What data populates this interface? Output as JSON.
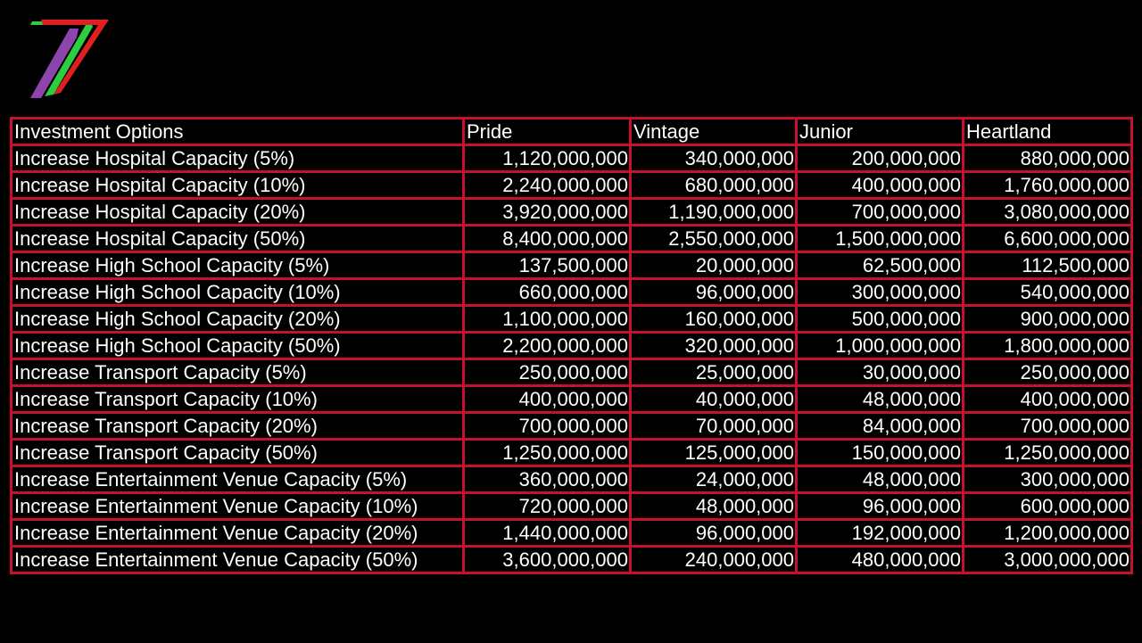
{
  "logo": {
    "icon": "channel-7-logo",
    "colors": [
      "#8e44ad",
      "#2ecc40",
      "#e02020"
    ]
  },
  "accent_color": "#c8102e",
  "table": {
    "headers": [
      "Investment Options",
      "Pride",
      "Vintage",
      "Junior",
      "Heartland"
    ],
    "rows": [
      [
        "Increase Hospital Capacity (5%)",
        "1,120,000,000",
        "340,000,000",
        "200,000,000",
        "880,000,000"
      ],
      [
        "Increase Hospital Capacity (10%)",
        "2,240,000,000",
        "680,000,000",
        "400,000,000",
        "1,760,000,000"
      ],
      [
        "Increase Hospital Capacity (20%)",
        "3,920,000,000",
        "1,190,000,000",
        "700,000,000",
        "3,080,000,000"
      ],
      [
        "Increase Hospital Capacity (50%)",
        "8,400,000,000",
        "2,550,000,000",
        "1,500,000,000",
        "6,600,000,000"
      ],
      [
        "Increase High School Capacity (5%)",
        "137,500,000",
        "20,000,000",
        "62,500,000",
        "112,500,000"
      ],
      [
        "Increase High School Capacity (10%)",
        "660,000,000",
        "96,000,000",
        "300,000,000",
        "540,000,000"
      ],
      [
        "Increase High School Capacity (20%)",
        "1,100,000,000",
        "160,000,000",
        "500,000,000",
        "900,000,000"
      ],
      [
        "Increase High School Capacity (50%)",
        "2,200,000,000",
        "320,000,000",
        "1,000,000,000",
        "1,800,000,000"
      ],
      [
        "Increase Transport Capacity (5%)",
        "250,000,000",
        "25,000,000",
        "30,000,000",
        "250,000,000"
      ],
      [
        "Increase Transport Capacity (10%)",
        "400,000,000",
        "40,000,000",
        "48,000,000",
        "400,000,000"
      ],
      [
        "Increase Transport Capacity (20%)",
        "700,000,000",
        "70,000,000",
        "84,000,000",
        "700,000,000"
      ],
      [
        "Increase Transport Capacity (50%)",
        "1,250,000,000",
        "125,000,000",
        "150,000,000",
        "1,250,000,000"
      ],
      [
        "Increase Entertainment Venue Capacity (5%)",
        "360,000,000",
        "24,000,000",
        "48,000,000",
        "300,000,000"
      ],
      [
        "Increase Entertainment Venue Capacity (10%)",
        "720,000,000",
        "48,000,000",
        "96,000,000",
        "600,000,000"
      ],
      [
        "Increase Entertainment Venue Capacity (20%)",
        "1,440,000,000",
        "96,000,000",
        "192,000,000",
        "1,200,000,000"
      ],
      [
        "Increase Entertainment Venue Capacity (50%)",
        "3,600,000,000",
        "240,000,000",
        "480,000,000",
        "3,000,000,000"
      ]
    ]
  }
}
